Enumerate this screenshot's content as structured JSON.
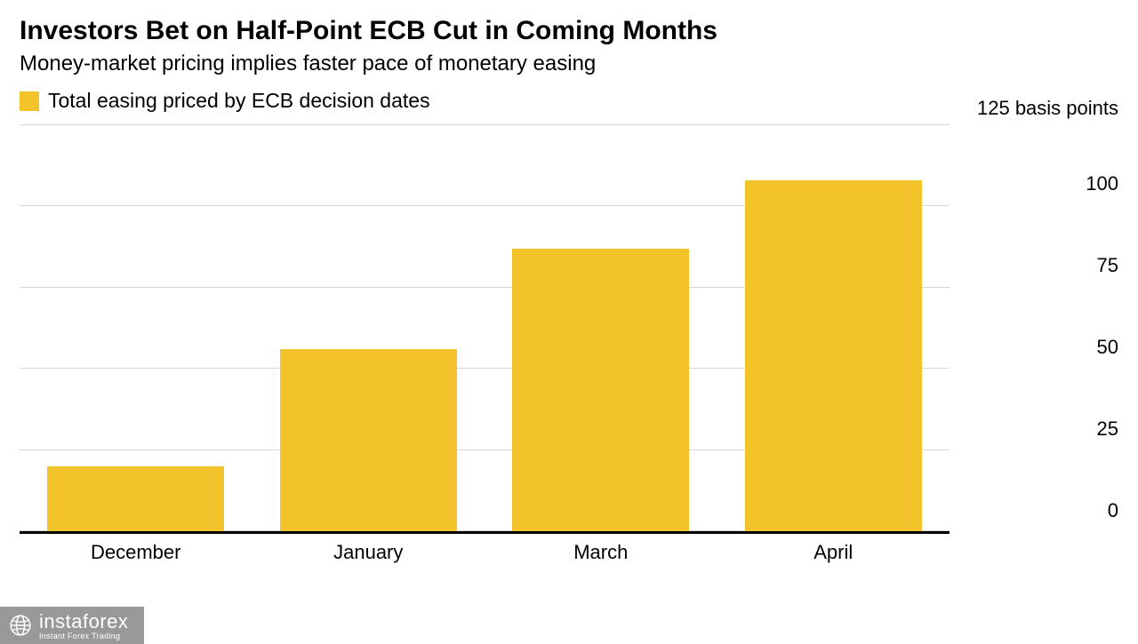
{
  "chart": {
    "type": "bar",
    "title": "Investors Bet on Half-Point ECB Cut in Coming Months",
    "subtitle": "Money-market pricing implies faster pace of monetary easing",
    "title_fontsize": 30,
    "title_fontweight": 700,
    "subtitle_fontsize": 24,
    "subtitle_color": "#000000",
    "legend": {
      "label": "Total easing priced by ECB decision dates",
      "swatch_color": "#f3c32c",
      "fontsize": 23
    },
    "categories": [
      "December",
      "January",
      "March",
      "April"
    ],
    "values": [
      20,
      56,
      87,
      108
    ],
    "bar_color": "#f3c32c",
    "bar_width_pct": 19,
    "bar_gap_pct": 8,
    "ylim": [
      0,
      125
    ],
    "ytick_step": 25,
    "yticks": [
      0,
      25,
      50,
      75,
      100,
      125
    ],
    "y_unit_label": "125 basis points",
    "y_tick_labels": [
      "0",
      "25",
      "50",
      "75",
      "100"
    ],
    "axis_fontsize": 22,
    "background_color": "#ffffff",
    "grid_color": "#d8d8d8",
    "baseline_color": "#000000",
    "baseline_width": 3,
    "x_label_fontsize": 22
  },
  "watermark": {
    "main": "instaforex",
    "sub": "Instant Forex Trading"
  }
}
